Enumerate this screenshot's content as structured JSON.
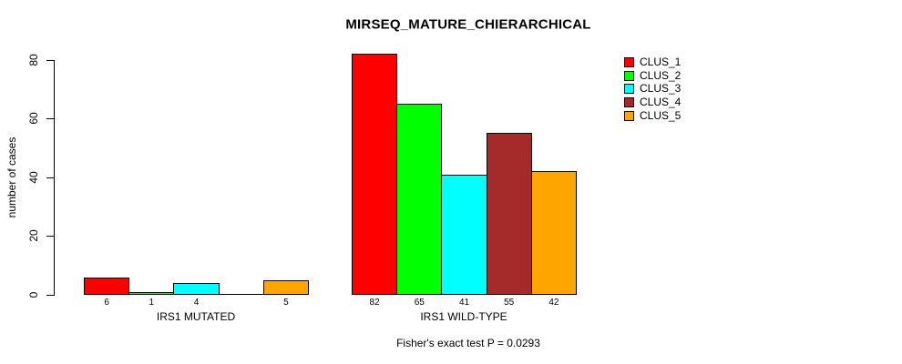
{
  "chart_data": {
    "type": "bar",
    "title": "MIRSEQ_MATURE_CHIERARCHICAL",
    "ylabel": "number of cases",
    "xlabel": "",
    "categories": [
      "IRS1 MUTATED",
      "IRS1 WILD-TYPE"
    ],
    "series": [
      {
        "name": "CLUS_1",
        "color": "#FF0000",
        "values": [
          6,
          82
        ]
      },
      {
        "name": "CLUS_2",
        "color": "#00FF00",
        "values": [
          1,
          65
        ]
      },
      {
        "name": "CLUS_3",
        "color": "#00FFFF",
        "values": [
          4,
          41
        ]
      },
      {
        "name": "CLUS_4",
        "color": "#A52A2A",
        "values": [
          0,
          55
        ]
      },
      {
        "name": "CLUS_5",
        "color": "#FFA500",
        "values": [
          5,
          42
        ]
      }
    ],
    "bar_value_labels": [
      [
        "6",
        "1",
        "4",
        "",
        "5"
      ],
      [
        "82",
        "65",
        "41",
        "55",
        "42"
      ]
    ],
    "yticks": [
      0,
      20,
      40,
      60,
      80
    ],
    "ylim": [
      0,
      85
    ],
    "grid": false,
    "legend": {
      "position": "top-right",
      "entries": [
        "CLUS_1",
        "CLUS_2",
        "CLUS_3",
        "CLUS_4",
        "CLUS_5"
      ]
    },
    "annotation": "Fisher's exact test P = 0.0293",
    "colors": {
      "background": "#FFFFFF",
      "axis": "#000000",
      "text": "#000000"
    }
  }
}
